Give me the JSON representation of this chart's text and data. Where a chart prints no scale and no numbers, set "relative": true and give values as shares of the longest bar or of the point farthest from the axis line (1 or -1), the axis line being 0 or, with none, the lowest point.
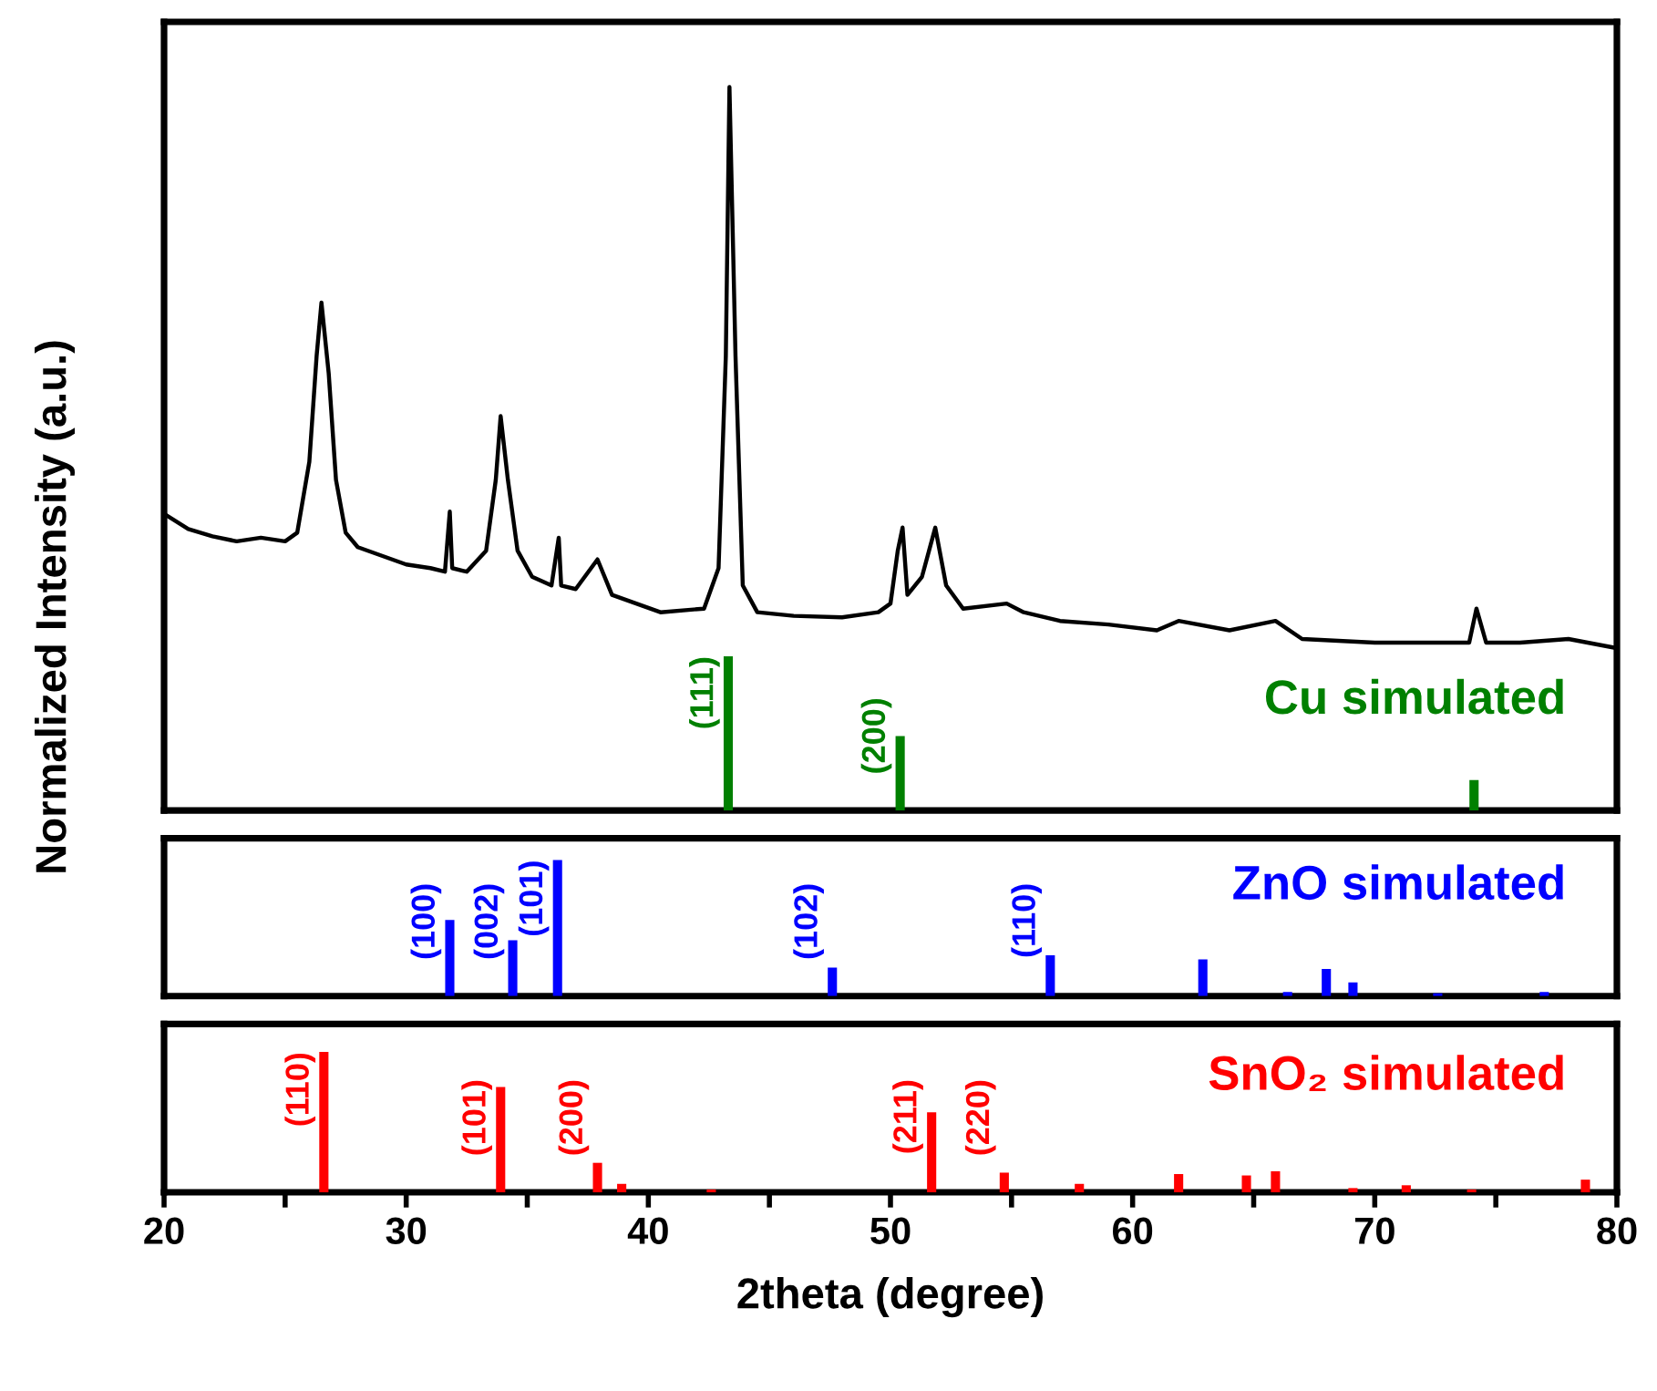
{
  "chart_data": [
    {
      "type": "line",
      "relative": true,
      "ylabel": "Normalized Intensity (a.u.)",
      "xlim": [
        20,
        80
      ],
      "tick_labels": false,
      "legend": false,
      "series": [
        {
          "color": "#000000",
          "x": [
            20.1,
            21,
            22,
            23,
            24,
            25,
            25.5,
            26.0,
            26.3,
            26.5,
            26.8,
            27.1,
            27.5,
            28,
            29,
            30,
            31,
            31.6,
            31.8,
            31.9,
            32.5,
            33.3,
            33.7,
            33.9,
            34.2,
            34.6,
            35.2,
            36.0,
            36.3,
            36.4,
            37.0,
            37.9,
            38.5,
            39.5,
            40.5,
            42.3,
            42.9,
            43.2,
            43.35,
            43.6,
            43.9,
            44.5,
            46,
            48,
            49.5,
            50.0,
            50.3,
            50.5,
            50.7,
            51.3,
            51.85,
            52.3,
            53,
            54.8,
            55.5,
            57,
            59,
            61,
            61.9,
            64,
            65.9,
            67,
            70,
            72,
            73.9,
            74.2,
            74.6,
            76,
            78,
            79.9
          ],
          "values": [
            0.408,
            0.389,
            0.379,
            0.372,
            0.377,
            0.372,
            0.384,
            0.482,
            0.628,
            0.702,
            0.604,
            0.457,
            0.384,
            0.364,
            0.352,
            0.34,
            0.335,
            0.33,
            0.413,
            0.335,
            0.33,
            0.359,
            0.457,
            0.545,
            0.457,
            0.359,
            0.323,
            0.311,
            0.377,
            0.311,
            0.306,
            0.347,
            0.298,
            0.286,
            0.274,
            0.279,
            0.335,
            0.628,
            1,
            0.628,
            0.311,
            0.274,
            0.269,
            0.267,
            0.274,
            0.286,
            0.359,
            0.391,
            0.298,
            0.323,
            0.391,
            0.311,
            0.279,
            0.286,
            0.274,
            0.262,
            0.257,
            0.249,
            0.262,
            0.249,
            0.262,
            0.237,
            0.232,
            0.232,
            0.232,
            0.279,
            0.232,
            0.232,
            0.237,
            0.225
          ]
        },
        {
          "type": "bar",
          "color": "#008000",
          "x": [
            43.3,
            50.4,
            74.1
          ],
          "values": [
            0.213,
            0.103,
            0.042
          ]
        }
      ],
      "annotations": [
        {
          "text": "(111)",
          "x": 43.3,
          "y": 0.213
        },
        {
          "text": "(200)",
          "x": 50.4,
          "y": 0.103
        },
        "Cu simulated"
      ]
    },
    {
      "type": "bar",
      "relative": true,
      "xlim": [
        20,
        80
      ],
      "tick_labels": false,
      "legend": false,
      "series": [
        {
          "color": "#0000ff",
          "x": [
            31.8,
            34.4,
            36.25,
            47.6,
            56.6,
            62.9,
            66.4,
            68.0,
            69.1,
            72.6,
            77.0
          ],
          "values": [
            0.56,
            0.41,
            1,
            0.21,
            0.3,
            0.27,
            0.03,
            0.2,
            0.1,
            0.02,
            0.03
          ]
        }
      ],
      "annotations": [
        {
          "text": "(100)",
          "x": 31.8,
          "y": 0.56
        },
        {
          "text": "(002)",
          "x": 34.4,
          "y": 0.41
        },
        {
          "text": "(101)",
          "x": 36.25,
          "y": 1
        },
        {
          "text": "(102)",
          "x": 47.6,
          "y": 0.21
        },
        {
          "text": "(110)",
          "x": 56.6,
          "y": 0.3
        },
        "ZnO simulated"
      ]
    },
    {
      "type": "bar",
      "relative": true,
      "xlabel": "2theta (degree)",
      "xlim": [
        20,
        80
      ],
      "tick_labels": "x",
      "legend": false,
      "xticks": [
        20,
        {
          "value": 25,
          "label": null
        },
        30,
        {
          "value": 35,
          "label": null
        },
        40,
        {
          "value": 45,
          "label": null
        },
        50,
        {
          "value": 55,
          "label": null
        },
        60,
        {
          "value": 65,
          "label": null
        },
        70,
        {
          "value": 75,
          "label": null
        },
        80
      ],
      "series": [
        {
          "color": "#ff0000",
          "x": [
            26.6,
            33.9,
            37.9,
            38.9,
            42.6,
            51.7,
            54.7,
            57.8,
            61.9,
            64.7,
            65.9,
            69.1,
            71.3,
            74.0,
            78.7
          ],
          "values": [
            1,
            0.75,
            0.21,
            0.06,
            0.02,
            0.57,
            0.14,
            0.06,
            0.13,
            0.12,
            0.15,
            0.03,
            0.05,
            0.02,
            0.09
          ]
        }
      ],
      "annotations": [
        {
          "text": "(110)",
          "x": 26.6,
          "y": 1
        },
        {
          "text": "(101)",
          "x": 33.9,
          "y": 0.75
        },
        {
          "text": "(200)",
          "x": 37.9,
          "y": 0.21
        },
        {
          "text": "(211)",
          "x": 51.7,
          "y": 0.57
        },
        {
          "text": "(220)",
          "x": 54.7,
          "y": 0.14
        },
        "SnO₂ simulated"
      ]
    }
  ]
}
